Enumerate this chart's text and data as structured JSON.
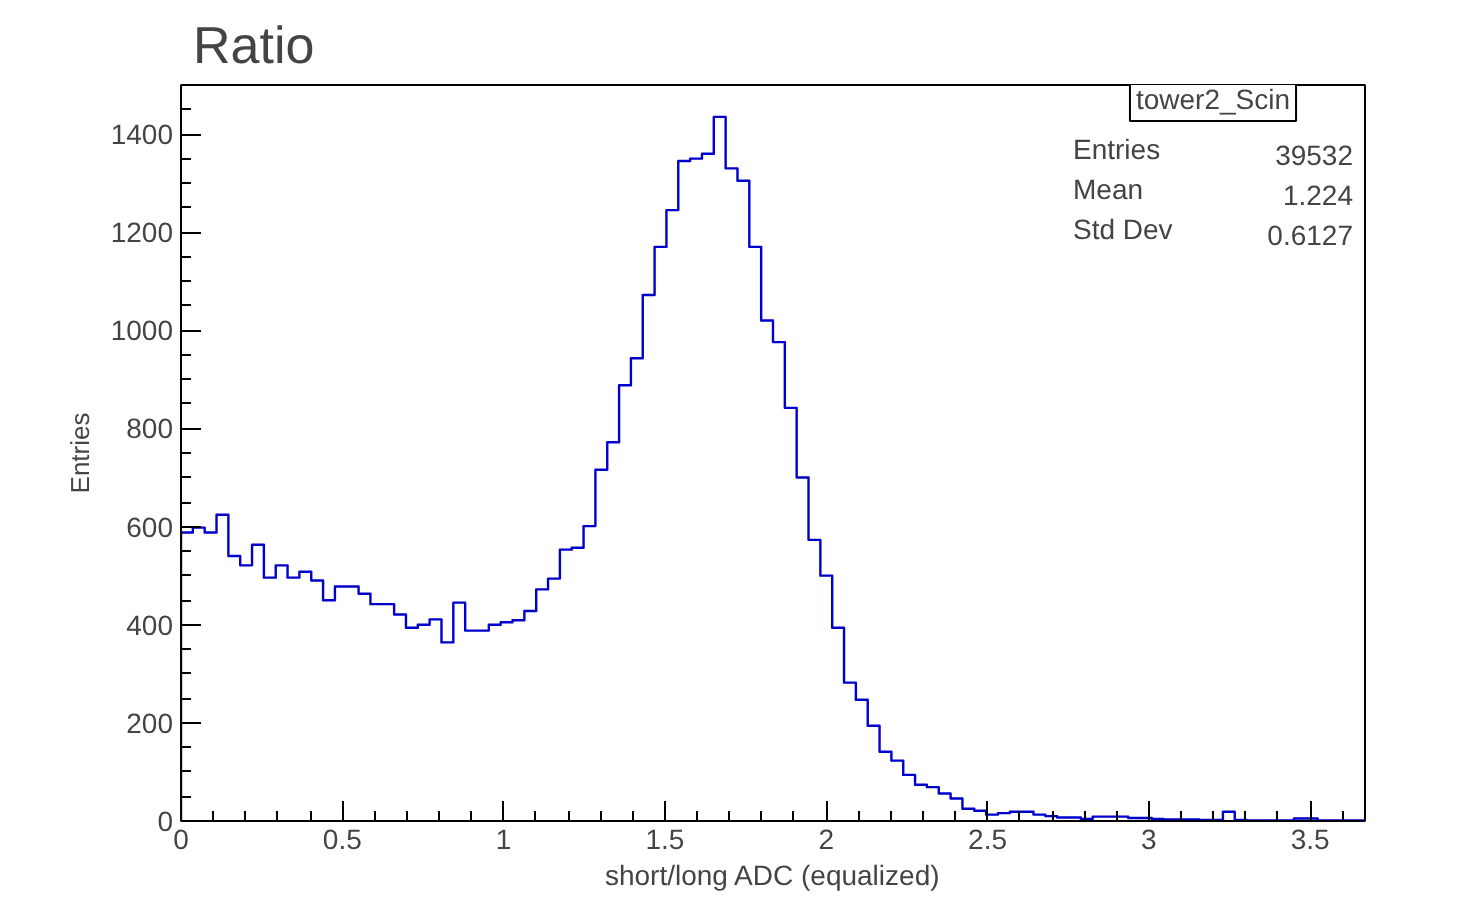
{
  "chart_data": {
    "type": "histogram",
    "title": "Ratio",
    "xlabel": "short/long ADC (equalized)",
    "ylabel": "Entries",
    "bins": [
      0,
      0.0367,
      0.0734,
      0.1101,
      0.1468,
      0.1835,
      0.2202,
      0.2569,
      0.2936,
      0.3303,
      0.367,
      0.4037,
      0.4404,
      0.4771,
      0.5138,
      0.5505,
      0.5872,
      0.6239,
      0.6606,
      0.6973,
      0.734,
      0.7707,
      0.8074,
      0.8441,
      0.8808,
      0.9175,
      0.9542,
      0.9909,
      1.0276,
      1.0643,
      1.101,
      1.1377,
      1.1744,
      1.2111,
      1.2478,
      1.2845,
      1.3212,
      1.3579,
      1.3946,
      1.4313,
      1.468,
      1.5047,
      1.5414,
      1.5781,
      1.6148,
      1.6515,
      1.6882,
      1.7249,
      1.7616,
      1.7983,
      1.835,
      1.8717,
      1.9084,
      1.9451,
      1.9818,
      2.0185,
      2.0552,
      2.0919,
      2.1286,
      2.1653,
      2.202,
      2.2387,
      2.2754,
      2.3121,
      2.3488,
      2.3855,
      2.4222,
      2.4589,
      2.4956,
      2.5323,
      2.569,
      2.6057,
      2.6424,
      2.6791,
      2.7158,
      2.7525,
      2.7892,
      2.8259,
      2.8626,
      2.8993,
      2.936,
      2.9727,
      3.0094,
      3.0461,
      3.0828,
      3.1195,
      3.1562,
      3.1929,
      3.2296,
      3.2663,
      3.303,
      3.3397,
      3.3764,
      3.4131,
      3.4498,
      3.4865,
      3.5232,
      3.5599,
      3.5966,
      3.6333,
      3.67
    ],
    "values": [
      588,
      598,
      588,
      624,
      540,
      521,
      563,
      496,
      521,
      496,
      508,
      490,
      450,
      478,
      478,
      463,
      442,
      442,
      421,
      394,
      400,
      411,
      364,
      445,
      388,
      388,
      400,
      405,
      409,
      428,
      472,
      494,
      553,
      557,
      601,
      716,
      772,
      888,
      943,
      1072,
      1170,
      1245,
      1345,
      1350,
      1360,
      1435,
      1330,
      1305,
      1170,
      1020,
      976,
      842,
      700,
      573,
      500,
      394,
      282,
      247,
      194,
      141,
      123,
      94,
      74,
      69,
      56,
      46,
      25,
      21,
      13,
      16,
      19,
      19,
      13,
      10,
      7,
      7,
      4,
      9,
      9,
      9,
      6,
      6,
      4,
      3,
      3,
      3,
      2,
      2,
      19,
      2,
      1,
      1,
      1,
      1,
      5,
      5,
      1,
      1,
      1,
      1
    ],
    "color": "#0000cc",
    "xlim": [
      0,
      3.67
    ],
    "ylim": [
      0,
      1500
    ],
    "xticks": [
      0,
      0.5,
      1,
      1.5,
      2,
      2.5,
      3,
      3.5
    ],
    "yticks": [
      0,
      200,
      400,
      600,
      800,
      1000,
      1200,
      1400
    ],
    "grid": false,
    "annotations": [
      "tower2_Scin",
      "Entries",
      "39532",
      "Mean",
      "1.224",
      "Std Dev",
      "0.6127"
    ]
  }
}
